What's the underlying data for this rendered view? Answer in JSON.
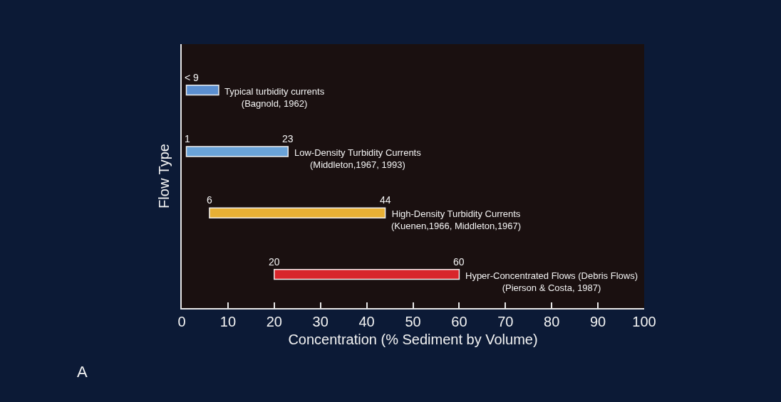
{
  "chart_data": {
    "type": "bar",
    "orientation": "horizontal",
    "categories": [
      "Typical turbidity currents\n(Bagnold, 1962)",
      "Low-Density Turbidity Currents\n(Middleton,1967, 1993)",
      "High-Density Turbidity Currents\n(Kuenen,1966, Middleton,1967)",
      "Hyper-Concentrated Flows (Debris Flows)\n(Pierson & Costa, 1987)"
    ],
    "base": [
      1,
      1,
      6,
      20
    ],
    "values": [
      7,
      22,
      38,
      40
    ],
    "colors": [
      "#5b8fd0",
      "#6aa3d8",
      "#e8b035",
      "#d8262b"
    ],
    "xlim": [
      0,
      100
    ],
    "xticks": [
      0,
      10,
      20,
      30,
      40,
      50,
      60,
      70,
      80,
      90,
      100
    ],
    "xlabel": "Concentration (% Sediment by Volume)",
    "ylabel": "Flow Type",
    "tick_labels": "x",
    "annotations": [
      {
        "text": "< 9",
        "x": 1,
        "y": "Typical turbidity currents\n(Bagnold, 1962)"
      },
      {
        "text": "1",
        "x": 1,
        "y": "Low-Density Turbidity Currents\n(Middleton,1967, 1993)"
      },
      {
        "text": "23",
        "x": 23,
        "y": "Low-Density Turbidity Currents\n(Middleton,1967, 1993)"
      },
      {
        "text": "6",
        "x": 6,
        "y": "High-Density Turbidity Currents\n(Kuenen,1966, Middleton,1967)"
      },
      {
        "text": "44",
        "x": 44,
        "y": "High-Density Turbidity Currents\n(Kuenen,1966, Middleton,1967)"
      },
      {
        "text": "20",
        "x": 20,
        "y": "Hyper-Concentrated Flows (Debris Flows)\n(Pierson & Costa, 1987)"
      },
      {
        "text": "60",
        "x": 60,
        "y": "Hyper-Concentrated Flows (Debris Flows)\n(Pierson & Costa, 1987)"
      },
      "A"
    ]
  }
}
